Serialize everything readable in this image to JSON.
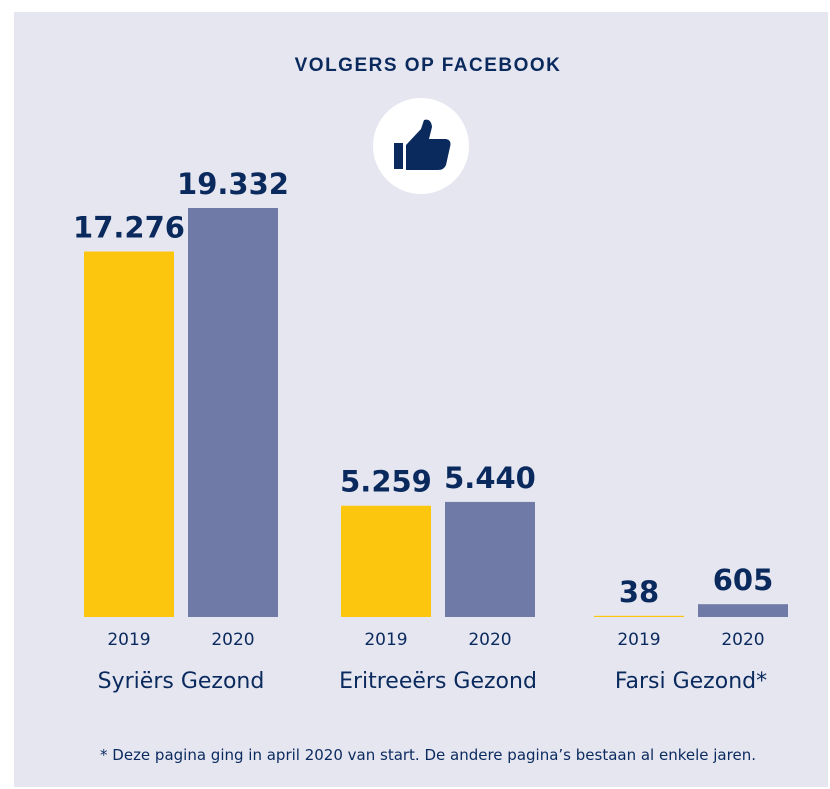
{
  "colors": {
    "panel_background": "#e6e6f0",
    "text": "#0a2a5e",
    "bar_2019": "#fcc60f",
    "bar_2020": "#6f7ba6",
    "icon_circle": "#ffffff"
  },
  "icon": "thumbs-up-icon",
  "chart_data": {
    "type": "bar",
    "title": "VOLGERS OP FACEBOOK",
    "categories": [
      "Syriërs Gezond",
      "Eritreeërs Gezond",
      "Farsi Gezond*"
    ],
    "years": [
      "2019",
      "2020"
    ],
    "series": [
      {
        "name": "2019",
        "values": [
          17276,
          5259,
          38
        ],
        "labels": [
          "17.276",
          "5.259",
          "38"
        ]
      },
      {
        "name": "2020",
        "values": [
          19332,
          5440,
          605
        ],
        "labels": [
          "19.332",
          "5.440",
          "605"
        ]
      }
    ],
    "ylim": [
      0,
      19332
    ],
    "grid": false,
    "legend": "none"
  },
  "footnote": "* Deze pagina ging in april 2020 van start. De andere pagina’s bestaan al enkele jaren."
}
